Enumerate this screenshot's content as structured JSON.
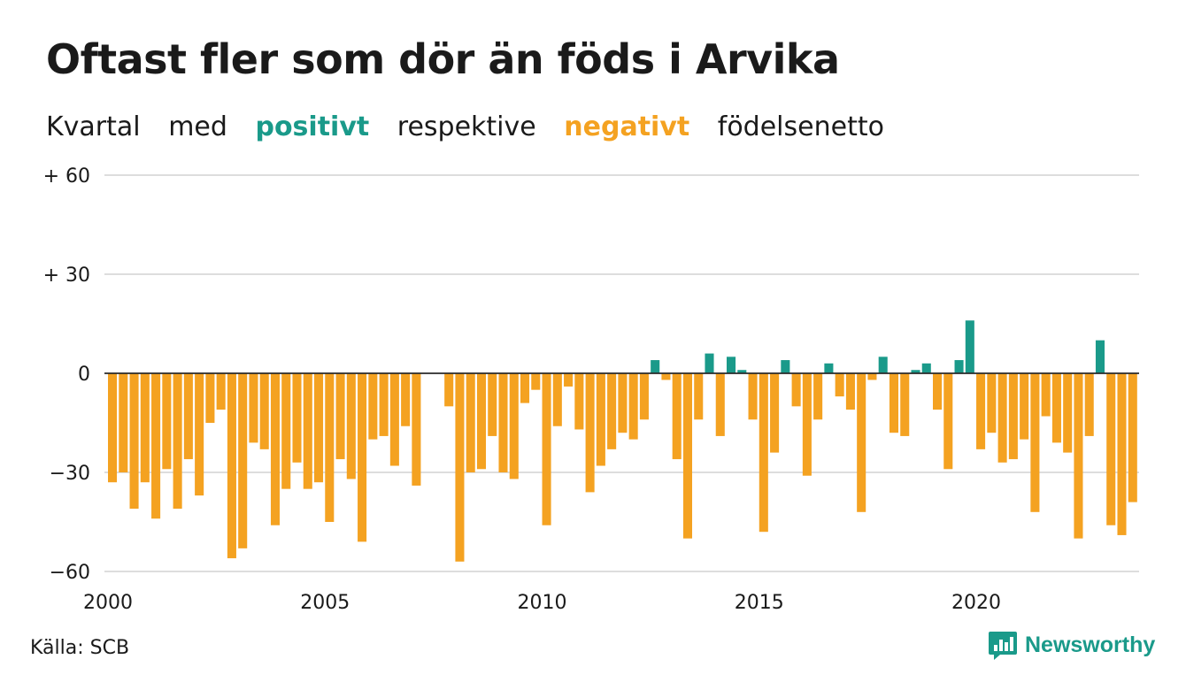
{
  "header": {
    "title": "Oftast fler som dör än föds i Arvika",
    "subtitle": {
      "part1": "Kvartal",
      "part2": "med",
      "positive_word": "positivt",
      "part3": "respektive",
      "negative_word": "negativt",
      "part4": "födelsenetto"
    }
  },
  "colors": {
    "positive": "#1a9a8a",
    "negative": "#f4a221",
    "grid": "#dddddd",
    "text": "#1a1a1a"
  },
  "chart_data": {
    "type": "bar",
    "x_start": "2000 Q1",
    "frequency": "quarterly",
    "values": [
      -33,
      -30,
      -41,
      -33,
      -44,
      -29,
      -41,
      -26,
      -37,
      -15,
      -11,
      -56,
      -53,
      -21,
      -23,
      -46,
      -35,
      -27,
      -35,
      -33,
      -45,
      -26,
      -32,
      -51,
      -20,
      -19,
      -28,
      -16,
      -34,
      0,
      0,
      -10,
      -57,
      -30,
      -29,
      -19,
      -30,
      -32,
      -9,
      -5,
      -46,
      -16,
      -4,
      -17,
      -36,
      -28,
      -23,
      -18,
      -20,
      -14,
      4,
      -2,
      -26,
      -50,
      -14,
      6,
      -19,
      5,
      1,
      -14,
      -48,
      -24,
      4,
      -10,
      -31,
      -14,
      3,
      -7,
      -11,
      -42,
      -2,
      5,
      -18,
      -19,
      1,
      3,
      -11,
      -29,
      4,
      16,
      -23,
      -18,
      -27,
      -26,
      -20,
      -42,
      -13,
      -21,
      -24,
      -50,
      -19,
      10,
      -46,
      -49,
      -39
    ],
    "ylim": [
      -60,
      60
    ],
    "yticks": [
      -60,
      -30,
      0,
      30,
      60
    ],
    "ytick_labels": [
      "−60",
      "−30",
      "0",
      "+ 30",
      "+ 60"
    ],
    "xticks": [
      "2000",
      "2005",
      "2010",
      "2015",
      "2020"
    ],
    "grid": true,
    "legend": "none"
  },
  "footer": {
    "source": "Källa: SCB",
    "brand": "Newsworthy",
    "brand_icon": "bar-chart-speech-bubble-icon"
  }
}
